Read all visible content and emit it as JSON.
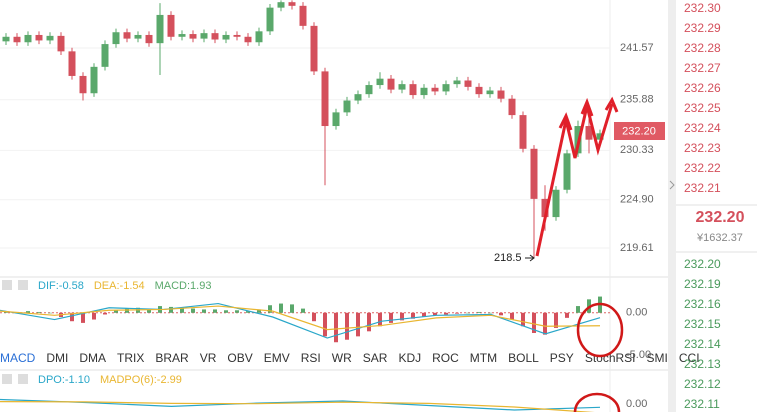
{
  "price_chart": {
    "ylim": [
      216.64,
      246.84
    ],
    "yticks": [
      241.57,
      235.88,
      230.33,
      {
        "value": 224.9,
        "label": "224.90"
      },
      219.61
    ],
    "up_color": "#5aa86b",
    "down_color": "#d4505c",
    "current_price": "232.20",
    "low_label": "218.5",
    "candles": [
      [
        242.3,
        243.2,
        241.9,
        242.8
      ],
      [
        242.8,
        243.2,
        241.8,
        242.2
      ],
      [
        242.2,
        243.4,
        241.8,
        243.0
      ],
      [
        243.0,
        243.4,
        242.0,
        242.4
      ],
      [
        242.4,
        243.3,
        242.0,
        242.9
      ],
      [
        242.9,
        243.3,
        240.8,
        241.2
      ],
      [
        241.2,
        241.6,
        238.1,
        238.5
      ],
      [
        238.5,
        238.9,
        235.8,
        236.6
      ],
      [
        236.6,
        239.9,
        236.2,
        239.5
      ],
      [
        239.5,
        242.4,
        239.1,
        242.0
      ],
      [
        242.0,
        243.7,
        241.6,
        243.3
      ],
      [
        243.3,
        243.7,
        242.2,
        242.6
      ],
      [
        242.6,
        243.4,
        242.2,
        243.0
      ],
      [
        243.0,
        243.4,
        241.7,
        242.1
      ],
      [
        242.1,
        246.5,
        238.6,
        245.2
      ],
      [
        245.2,
        245.6,
        242.4,
        242.8
      ],
      [
        242.8,
        243.5,
        242.4,
        243.1
      ],
      [
        243.1,
        243.5,
        242.2,
        242.6
      ],
      [
        242.6,
        243.6,
        242.2,
        243.2
      ],
      [
        243.2,
        243.6,
        242.1,
        242.5
      ],
      [
        242.5,
        243.4,
        242.1,
        243.0
      ],
      [
        243.0,
        243.4,
        242.4,
        242.8
      ],
      [
        242.8,
        243.2,
        241.8,
        242.2
      ],
      [
        242.2,
        243.8,
        241.8,
        243.4
      ],
      [
        243.4,
        246.4,
        243.0,
        246.0
      ],
      [
        246.0,
        246.8,
        245.6,
        246.6
      ],
      [
        246.6,
        246.8,
        245.8,
        246.2
      ],
      [
        246.2,
        246.6,
        243.6,
        244.0
      ],
      [
        244.0,
        244.4,
        238.6,
        239.0
      ],
      [
        239.0,
        239.4,
        226.5,
        233.0
      ],
      [
        233.0,
        234.9,
        232.6,
        234.5
      ],
      [
        234.5,
        236.2,
        234.1,
        235.8
      ],
      [
        235.8,
        236.9,
        235.4,
        236.5
      ],
      [
        236.5,
        237.9,
        236.1,
        237.5
      ],
      [
        237.5,
        238.9,
        237.1,
        238.2
      ],
      [
        238.2,
        238.6,
        236.6,
        237.0
      ],
      [
        237.0,
        238.0,
        236.6,
        237.6
      ],
      [
        237.6,
        238.0,
        236.0,
        236.4
      ],
      [
        236.4,
        237.6,
        236.0,
        237.2
      ],
      [
        237.2,
        237.6,
        236.4,
        236.8
      ],
      [
        236.8,
        238.0,
        236.4,
        237.6
      ],
      [
        237.6,
        238.4,
        237.2,
        238.0
      ],
      [
        238.0,
        238.4,
        236.9,
        237.3
      ],
      [
        237.3,
        237.7,
        236.1,
        236.5
      ],
      [
        236.5,
        237.3,
        236.1,
        236.9
      ],
      [
        236.9,
        237.3,
        235.6,
        236.0
      ],
      [
        236.0,
        236.4,
        233.8,
        234.2
      ],
      [
        234.2,
        234.6,
        230.1,
        230.5
      ],
      [
        230.5,
        230.9,
        218.5,
        225.0
      ],
      [
        225.0,
        226.5,
        221.5,
        223.0
      ],
      [
        223.0,
        226.4,
        222.6,
        226.0
      ],
      [
        226.0,
        230.4,
        225.6,
        230.0
      ],
      [
        230.0,
        233.6,
        229.6,
        233.0
      ],
      [
        233.0,
        233.8,
        230.0,
        231.5
      ],
      [
        231.5,
        232.6,
        231.1,
        232.2
      ]
    ]
  },
  "macd": {
    "labels": [
      {
        "text": "DIF:-0.58",
        "color": "#2aa7c9"
      },
      {
        "text": "DEA:-1.54",
        "color": "#e9b631"
      },
      {
        "text": "MACD:1.93",
        "color": "#5aa86b"
      }
    ],
    "ylim": [
      -6.8,
      3.9
    ],
    "yticks": [
      {
        "value": 0,
        "label": "0.00"
      },
      {
        "value": -5,
        "label": "-5.00"
      }
    ],
    "hist": [
      0.2,
      0.1,
      0.2,
      0.1,
      0,
      -0.5,
      -1,
      -1.2,
      -0.8,
      -0.2,
      0.3,
      0.5,
      0.6,
      0.5,
      0.8,
      0.7,
      0.6,
      0.5,
      0.4,
      0.4,
      0.3,
      0.3,
      0.2,
      0.4,
      0.9,
      1.1,
      1.0,
      0.5,
      -1.0,
      -2.8,
      -3.5,
      -3.2,
      -2.8,
      -2.2,
      -1.6,
      -1.2,
      -0.9,
      -0.7,
      -0.5,
      -0.3,
      -0.2,
      -0.1,
      0,
      0.1,
      0,
      -0.3,
      -0.8,
      -1.6,
      -2.4,
      -2.6,
      -1.8,
      -0.6,
      0.8,
      1.6,
      1.93
    ],
    "dif": [
      0.3,
      -0.8,
      0.6,
      0.4,
      1.1,
      -0.5,
      -3.0,
      -1.0,
      -0.3,
      -0.2,
      -2.5,
      -0.58
    ],
    "dea": [
      0.2,
      -0.3,
      0.3,
      0.4,
      0.8,
      0.2,
      -2.0,
      -1.5,
      -0.6,
      -0.3,
      -1.6,
      -1.54
    ]
  },
  "tabs": [
    "MACD",
    "DMI",
    "DMA",
    "TRIX",
    "BRAR",
    "VR",
    "OBV",
    "EMV",
    "RSI",
    "WR",
    "SAR",
    "KDJ",
    "ROC",
    "MTM",
    "BOLL",
    "PSY",
    "StochRSI",
    "SMI",
    "CCI"
  ],
  "dpo": {
    "labels": [
      {
        "text": "DPO:-1.10",
        "color": "#2aa7c9"
      },
      {
        "text": "MADPO(6):-2.99",
        "color": "#e9b631"
      }
    ],
    "ylim": [
      -2.67,
      10.67
    ],
    "yticks": [
      {
        "value": 0,
        "label": "0.00"
      }
    ],
    "dpo": [
      1.5,
      0.5,
      -0.8,
      0.3,
      1.0,
      -0.5,
      -2.0,
      -1.1
    ],
    "madpo": [
      0.8,
      0.7,
      0.2,
      0.1,
      0.6,
      0.2,
      -1.0,
      -2.99
    ]
  },
  "order_book": {
    "asks": [
      "232.30",
      "232.29",
      "232.28",
      "232.27",
      "232.26",
      "232.25",
      "232.24",
      "232.23",
      "232.22",
      "232.21"
    ],
    "last": "232.20",
    "last_cny": "¥1632.37",
    "bids": [
      "232.20",
      "232.19",
      "232.16",
      "232.15",
      "232.14",
      "232.13",
      "232.12",
      "232.11"
    ]
  }
}
